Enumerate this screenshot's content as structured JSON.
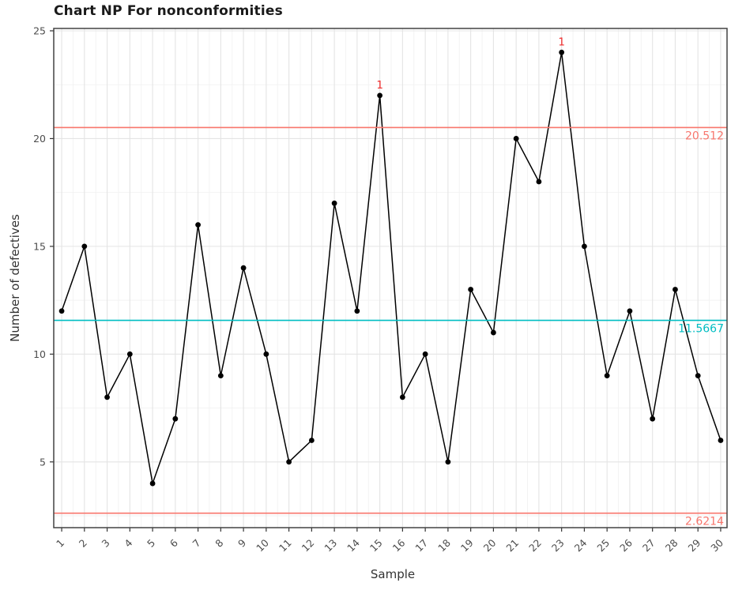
{
  "chart_data": {
    "type": "line",
    "chart_kind": "np-control-chart",
    "title": "Chart NP For nonconformities",
    "xlabel": "Sample",
    "ylabel": "Number of defectives",
    "x": [
      1,
      2,
      3,
      4,
      5,
      6,
      7,
      8,
      9,
      10,
      11,
      12,
      13,
      14,
      15,
      16,
      17,
      18,
      19,
      20,
      21,
      22,
      23,
      24,
      25,
      26,
      27,
      28,
      29,
      30
    ],
    "values": [
      12,
      15,
      8,
      10,
      4,
      7,
      16,
      9,
      14,
      10,
      5,
      6,
      17,
      12,
      22,
      8,
      10,
      5,
      13,
      11,
      20,
      18,
      24,
      15,
      9,
      12,
      7,
      13,
      9,
      6
    ],
    "center_line": {
      "value": 11.5667,
      "label": "11.5667"
    },
    "upper_control_limit": {
      "value": 20.512,
      "label": "20.512"
    },
    "lower_control_limit": {
      "value": 2.6214,
      "label": "2.6214"
    },
    "violations": [
      {
        "sample": 15,
        "value": 22,
        "label": "1"
      },
      {
        "sample": 23,
        "value": 24,
        "label": "1"
      }
    ],
    "x_ticks": [
      1,
      2,
      3,
      4,
      5,
      6,
      7,
      8,
      9,
      10,
      11,
      12,
      13,
      14,
      15,
      16,
      17,
      18,
      19,
      20,
      21,
      22,
      23,
      24,
      25,
      26,
      27,
      28,
      29,
      30
    ],
    "y_ticks": [
      5,
      10,
      15,
      20,
      25
    ],
    "y_minor_ticks": [
      2.5,
      7.5,
      12.5,
      17.5,
      22.5
    ],
    "xlim": [
      0.65,
      30.28
    ],
    "ylim": [
      1.95,
      25.11
    ],
    "grid": {
      "major": true,
      "minor": true
    },
    "legend_position": "none",
    "x_tick_rotation": -45,
    "colors": {
      "series_line": "#000000",
      "point": "#000000",
      "limit_line": "#F8766D",
      "limit_label": "#F8766D",
      "center_line": "#00BDC2",
      "center_label": "#00BDC2",
      "violation_label": "#EE2C2C",
      "grid_major": "#E4E4E4",
      "grid_minor": "#F2F2F2",
      "panel_border": "#424242",
      "tick": "#333333",
      "tick_label": "#4D4D4D",
      "axis_title": "#333333",
      "title": "#1A1A1A",
      "background": "#FFFFFF"
    }
  }
}
